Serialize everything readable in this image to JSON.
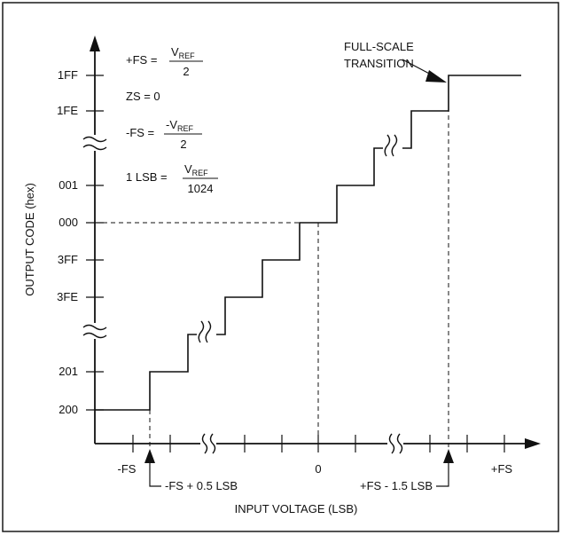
{
  "y_axis": {
    "title": "OUTPUT CODE (hex)",
    "codes_upper": [
      "1FF",
      "1FE",
      "001",
      "000",
      "3FF",
      "3FE"
    ],
    "codes_lower": [
      "201",
      "200"
    ]
  },
  "x_axis": {
    "title": "INPUT VOLTAGE (LSB)",
    "neg_fs": "-FS",
    "zero": "0",
    "pos_fs": "+FS",
    "first_transition": "-FS + 0.5 LSB",
    "last_transition": "+FS - 1.5 LSB"
  },
  "callout": {
    "line1": "FULL-SCALE",
    "line2": "TRANSITION"
  },
  "equations": {
    "pfs_lhs": "+FS =",
    "pfs_num": "V",
    "pfs_num_sub": "REF",
    "pfs_den": "2",
    "zs": "ZS = 0",
    "nfs_lhs": "-FS =",
    "nfs_num": "-V",
    "nfs_num_sub": "REF",
    "nfs_den": "2",
    "lsb_lhs": "1 LSB =",
    "lsb_num": "V",
    "lsb_num_sub": "REF",
    "lsb_den": "1024"
  }
}
